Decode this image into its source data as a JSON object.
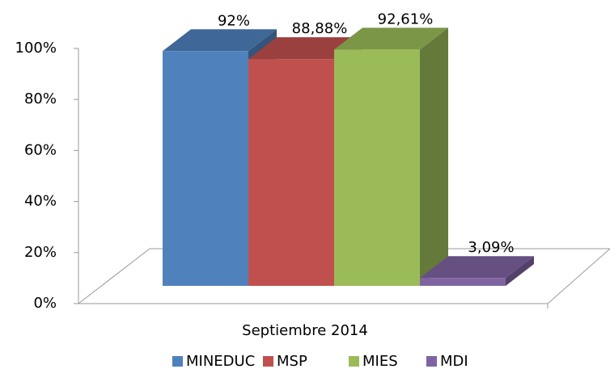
{
  "chart_data": {
    "type": "bar",
    "categories": [
      "Septiembre 2014"
    ],
    "series": [
      {
        "name": "MINEDUC",
        "color": "#4f81bd",
        "values": [
          92
        ],
        "value_labels": [
          "92%"
        ]
      },
      {
        "name": "MSP",
        "color": "#c0504d",
        "values": [
          88.88
        ],
        "value_labels": [
          "88,88%"
        ]
      },
      {
        "name": "MIES",
        "color": "#9bbb59",
        "values": [
          92.61
        ],
        "value_labels": [
          "92,61%"
        ]
      },
      {
        "name": "MDI",
        "color": "#8064a2",
        "values": [
          3.09
        ],
        "value_labels": [
          "3,09%"
        ]
      }
    ],
    "ylim": [
      0,
      100
    ],
    "yticks": [
      {
        "value": 0,
        "label": "0%"
      },
      {
        "value": 20,
        "label": "20%"
      },
      {
        "value": 40,
        "label": "40%"
      },
      {
        "value": 60,
        "label": "60%"
      },
      {
        "value": 80,
        "label": "80%"
      },
      {
        "value": 100,
        "label": "100%"
      }
    ],
    "legend": "bottom"
  }
}
